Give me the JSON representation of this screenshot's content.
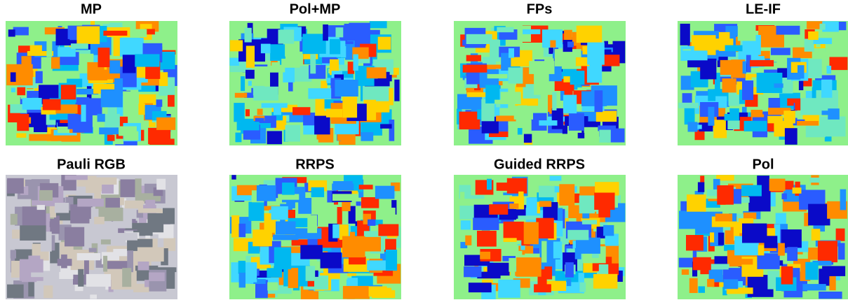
{
  "panels": [
    {
      "title": "MP"
    },
    {
      "title": "Pol+MP"
    },
    {
      "title": "FPs"
    },
    {
      "title": "LE-IF"
    },
    {
      "title": "Pauli RGB"
    },
    {
      "title": "RRPS"
    },
    {
      "title": "Guided RRPS"
    },
    {
      "title": "Pol"
    }
  ]
}
